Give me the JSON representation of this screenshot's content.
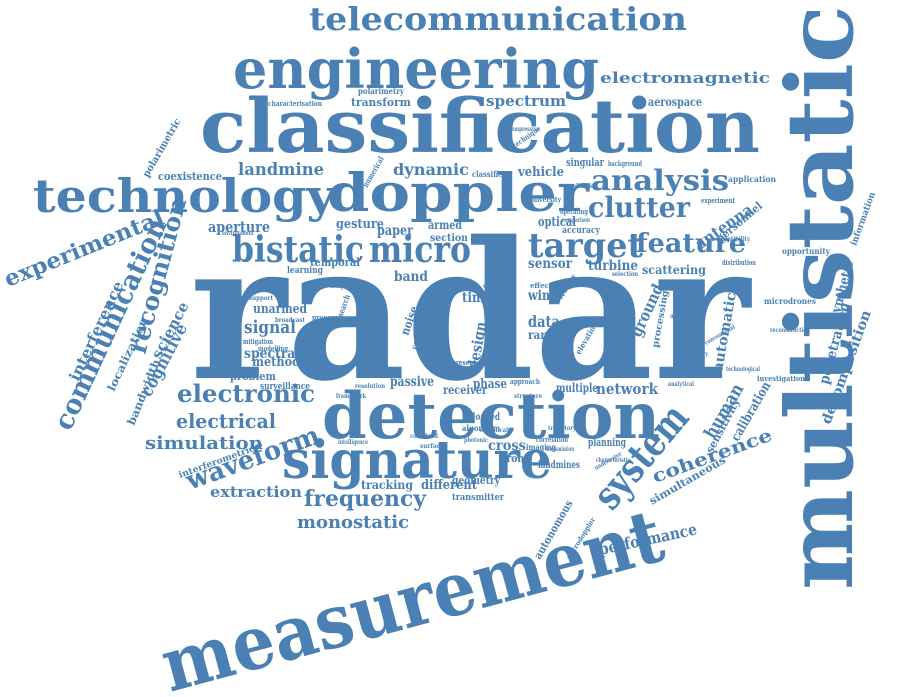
{
  "word_cloud": {
    "color": "#4a80b4",
    "words": {
      "radar": "radar",
      "multistatic": "multistatic",
      "measurement": "measurement",
      "classification": "classification",
      "detection": "detection",
      "engineering": "engineering",
      "telecommunication": "telecommunication",
      "technology": "technology",
      "doppler": "doppler",
      "signature": "signature",
      "bistatic": "bistatic",
      "micro": "micro",
      "target": "target",
      "analysis": "analysis",
      "clutter": "clutter",
      "feature": "feature",
      "system": "system",
      "communication": "communication",
      "recognition": "recognition",
      "experimental": "experimental",
      "electronic": "electronic",
      "electrical": "electrical",
      "simulation": "simulation",
      "waveform": "waveform",
      "frequency": "frequency",
      "monostatic": "monostatic",
      "extraction": "extraction",
      "performance": "performance",
      "coherence": "coherence",
      "decomposition": "decomposition",
      "penetrating": "penetrating",
      "synthetic": "synthetic",
      "human": "human",
      "ground": "ground",
      "antenna": "antenna",
      "personnel": "personnel",
      "spectrum": "spectrum",
      "electromagnetic": "electromagnetic",
      "aerospace": "aerospace",
      "landmine": "landmine",
      "dynamic": "dynamic",
      "signal": "signal",
      "spectral": "spectral",
      "method": "method",
      "problem": "problem",
      "interference": "interference",
      "cognitive": "cognitive",
      "science": "science",
      "localization": "localization",
      "bandwidth": "bandwidth",
      "polarimetric": "polarimetric",
      "coexistence": "coexistence",
      "aperture": "aperture",
      "gesture": "gesture",
      "optical": "optical",
      "sensor": "sensor",
      "turbine": "turbine",
      "scattering": "scattering",
      "network": "network",
      "tracking": "tracking",
      "different": "different",
      "transmitter": "transmitter",
      "geometry": "geometry",
      "autonomous": "autonomous",
      "calibration": "calibration",
      "sensitivity": "sensitivity",
      "simultaneous": "simultaneous",
      "automatic": "automatic",
      "processing": "processing",
      "vehicle": "vehicle",
      "transform": "transform",
      "polarimetry": "polarimetry",
      "characterisation": "characterisation",
      "application": "application",
      "information": "information",
      "opportunity": "opportunity",
      "microdrones": "microdrones",
      "reconstruction": "reconstruction",
      "investigation": "investigation",
      "unarmed": "unarmed",
      "surveillance": "surveillance",
      "passive": "passive",
      "receiver": "receiver",
      "phase": "phase",
      "multiple": "multiple",
      "time": "time",
      "wind": "wind",
      "data": "data",
      "range": "range",
      "design": "design",
      "band": "band",
      "cross": "cross",
      "drone": "drone",
      "temporal": "temporal",
      "paper": "paper",
      "armed": "armed",
      "section": "section",
      "learning": "learning",
      "interferometric": "interferometric",
      "planning": "planning",
      "landmines": "landmines",
      "correlation": "correlation",
      "microdoppler": "microdoppler",
      "classifier": "classifier",
      "singular": "singular",
      "background": "background",
      "accuracy": "accuracy",
      "selection": "selection",
      "experiment": "experiment",
      "compatibility": "compatibility",
      "distribution": "distribution",
      "numerical": "numerical",
      "unloaded": "unloaded",
      "algorithm": "algorithm",
      "noise": "noise",
      "model": "model",
      "result": "result",
      "fusion": "fusion",
      "concept": "concept",
      "imaging": "imaging",
      "mitigation": "mitigation",
      "modelling": "modelling",
      "framework": "framework",
      "approach": "approach",
      "structure": "structure",
      "support": "support",
      "research": "research",
      "adaptive": "adaptive",
      "process": "process",
      "technique": "technique",
      "compressive": "compressive",
      "diversity": "diversity",
      "environment": "environment",
      "elevation": "elevation",
      "velocity": "velocity",
      "uncertainty": "uncertainty",
      "characteristic": "characteristic",
      "underwater": "underwater",
      "technological": "technological",
      "conventional": "conventional",
      "preliminary": "preliminary",
      "analytical": "analytical",
      "effect": "effect",
      "nextrad": "nextrad",
      "position": "position",
      "present": "present",
      "combined": "combined",
      "broadcast": "broadcast",
      "resolution": "resolution",
      "statistical": "statistical",
      "trajectory": "trajectory",
      "transmission": "transmission",
      "intelligence": "intelligence",
      "surface": "surface",
      "operating": "operating",
      "comparison": "comparison",
      "photonic": "photonic",
      "validation": "validation"
    }
  }
}
